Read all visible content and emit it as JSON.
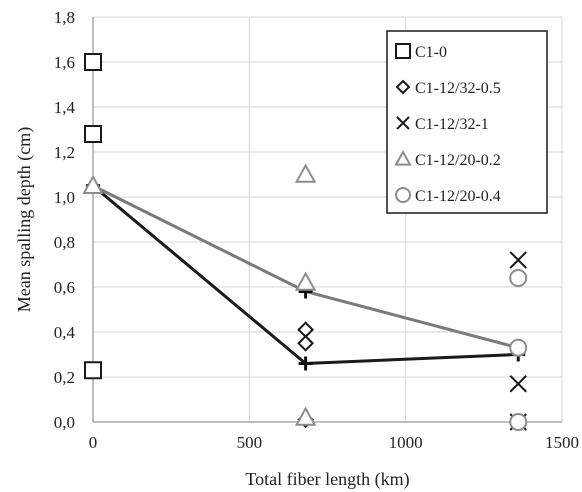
{
  "chart_data": {
    "type": "scatter",
    "xlabel": "Total fiber length (km)",
    "ylabel": "Mean spalling depth (cm)",
    "xlim": [
      0,
      1500
    ],
    "ylim": [
      0,
      1.8
    ],
    "x_ticks": [
      0,
      500,
      1000,
      1500
    ],
    "x_tick_labels": [
      "0",
      "500",
      "1000",
      "1500"
    ],
    "y_ticks": [
      0,
      0.2,
      0.4,
      0.6,
      0.8,
      1.0,
      1.2,
      1.4,
      1.6,
      1.8
    ],
    "y_tick_labels": [
      "0,0",
      "0,2",
      "0,4",
      "0,6",
      "0,8",
      "1,0",
      "1,2",
      "1,4",
      "1,6",
      "1,8"
    ],
    "grid": true,
    "legend_position": "top-right",
    "series": [
      {
        "name": "C1-0",
        "marker": "square",
        "color": "#1a1a1a",
        "points": [
          [
            0,
            1.6
          ],
          [
            0,
            1.28
          ],
          [
            0,
            0.23
          ]
        ]
      },
      {
        "name": "C1-12/32-0.5",
        "marker": "diamond",
        "color": "#1a1a1a",
        "points": [
          [
            680,
            0.41
          ],
          [
            680,
            0.35
          ],
          [
            680,
            0.01
          ]
        ]
      },
      {
        "name": "C1-12/32-1",
        "marker": "x",
        "color": "#1a1a1a",
        "points": [
          [
            1360,
            0.72
          ],
          [
            1360,
            0.17
          ],
          [
            1360,
            0.0
          ]
        ]
      },
      {
        "name": "C1-12/20-0.2",
        "marker": "triangle",
        "color": "#8c8c8c",
        "points": [
          [
            0,
            1.05
          ],
          [
            680,
            1.1
          ],
          [
            680,
            0.62
          ],
          [
            680,
            0.02
          ]
        ]
      },
      {
        "name": "C1-12/20-0.4",
        "marker": "circle",
        "color": "#8c8c8c",
        "points": [
          [
            1360,
            0.64
          ],
          [
            1360,
            0.33
          ],
          [
            1360,
            0.0
          ]
        ]
      }
    ],
    "mean_lines": [
      {
        "color": "#1a1a1a",
        "points": [
          [
            0,
            1.05
          ],
          [
            680,
            0.26
          ],
          [
            1360,
            0.3
          ]
        ]
      },
      {
        "color": "#7a7a7a",
        "points": [
          [
            0,
            1.05
          ],
          [
            680,
            0.58
          ],
          [
            1360,
            0.33
          ]
        ]
      }
    ]
  }
}
